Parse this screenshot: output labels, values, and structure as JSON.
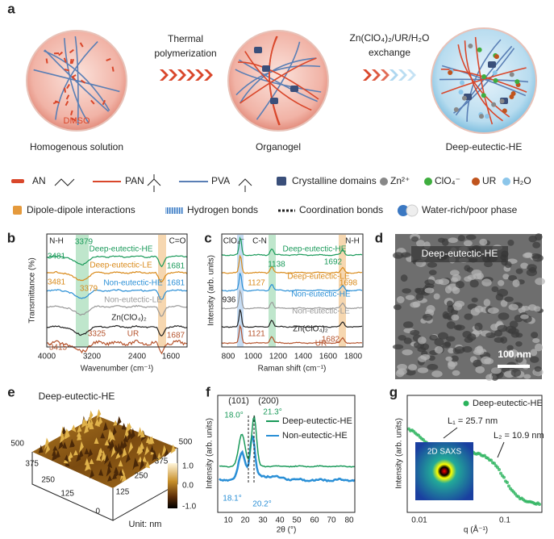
{
  "panel_labels": [
    "a",
    "b",
    "c",
    "d",
    "e",
    "f",
    "g"
  ],
  "a": {
    "arrow_1": [
      "Thermal",
      "polymerization"
    ],
    "arrow_2": [
      "Zn(ClO₄)₂/UR/H₂O",
      "exchange"
    ],
    "solvent": "DMSO",
    "stages": [
      "Homogenous solution",
      "Organogel",
      "Deep-eutectic-HE"
    ]
  },
  "legend": [
    "AN",
    "PAN",
    "PVA",
    "Crystalline domains",
    "Zn²⁺",
    "ClO₄⁻",
    "UR",
    "H₂O",
    "Dipole-dipole interactions",
    "Hydrogen bonds",
    "Coordination bonds",
    "Water-rich/poor phase"
  ],
  "b": {
    "y_label": "Transmittance (%)",
    "x_label": "Wavenumber (cm⁻¹)",
    "x_ticks": [
      "4000",
      "3200",
      "2400",
      "1600"
    ],
    "bands": [
      "N-H",
      "C=O"
    ],
    "series": [
      "Deep-eutectic-HE",
      "Deep-eutectic-LE",
      "Non-eutectic-HE",
      "Non-eutectic-LE",
      "Zn(ClO₄)₂",
      "UR"
    ],
    "peaks": [
      "3379",
      "3481",
      "1681",
      "3481",
      "3379",
      "1681",
      "3325",
      "1687",
      "3415"
    ]
  },
  "c": {
    "y_label": "Intensity (arb. units)",
    "x_label": "Raman shift (cm⁻¹)",
    "x_ticks": [
      "800",
      "1000",
      "1200",
      "1400",
      "1600",
      "1800"
    ],
    "bands": [
      "ClO₄⁻",
      "C-N",
      "N-H"
    ],
    "series": [
      "Deep-eutectic-HE",
      "Deep-eutectic-LE",
      "Non-eutectic-HE",
      "Non-eutectic-LE",
      "Zn(ClO₄)₂",
      "UR"
    ],
    "peaks": [
      "1138",
      "1692",
      "1127",
      "1698",
      "936",
      "1121",
      "1682"
    ]
  },
  "d": {
    "title": "Deep-eutectic-HE",
    "scale_bar": "100 nm"
  },
  "e": {
    "title": "Deep-eutectic-HE",
    "y_ticks": [
      "500",
      "375",
      "250",
      "125",
      "0"
    ],
    "x_ticks": [
      "500",
      "375",
      "250",
      "125"
    ],
    "colorbar_ticks": [
      "1.0",
      "0.0",
      "-1.0"
    ],
    "unit": "Unit: nm"
  },
  "f": {
    "y_label": "Intensity (arb. units)",
    "x_label": "2θ (°)",
    "x_ticks": [
      "10",
      "20",
      "30",
      "40",
      "50",
      "60",
      "70",
      "80"
    ],
    "planes": [
      "(101)",
      "(200)"
    ],
    "series": [
      "Deep-eutectic-HE",
      "Non-eutectic-HE"
    ],
    "peaks": [
      "18.0°",
      "21.3°",
      "18.1°",
      "20.2°"
    ]
  },
  "g": {
    "y_label": "Intensity (arb. units)",
    "x_label": "q (Å⁻¹)",
    "x_ticks": [
      "0.01",
      "0.1"
    ],
    "series": [
      "Deep-eutectic-HE"
    ],
    "sizes": [
      "L₁ = 25.7 nm",
      "L₂ = 10.9 nm"
    ],
    "inset": "2D SAXS"
  }
}
